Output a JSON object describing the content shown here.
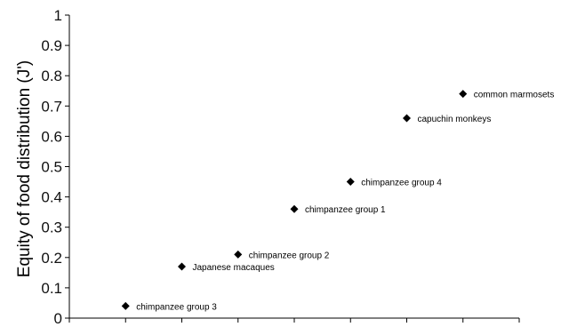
{
  "chart_data": {
    "type": "scatter",
    "ylabel": "Equity of food distribution (J')",
    "ylim": [
      0,
      1
    ],
    "yticks": [
      "0",
      "0.1",
      "0.2",
      "0.3",
      "0.4",
      "0.5",
      "0.6",
      "0.7",
      "0.8",
      "0.9",
      "1"
    ],
    "x_category_count": 7,
    "grid": false,
    "marker": "diamond",
    "points": [
      {
        "label": "chimpanzee group 3",
        "x": 1,
        "y": 0.04
      },
      {
        "label": "Japanese macaques",
        "x": 2,
        "y": 0.17
      },
      {
        "label": "chimpanzee group 2",
        "x": 3,
        "y": 0.21
      },
      {
        "label": "chimpanzee group 1",
        "x": 4,
        "y": 0.36
      },
      {
        "label": "chimpanzee group 4",
        "x": 5,
        "y": 0.45
      },
      {
        "label": "capuchin monkeys",
        "x": 6,
        "y": 0.66
      },
      {
        "label": "common marmosets",
        "x": 7,
        "y": 0.74
      }
    ],
    "colors": {
      "marker": "#000000",
      "axis": "#000000"
    }
  }
}
